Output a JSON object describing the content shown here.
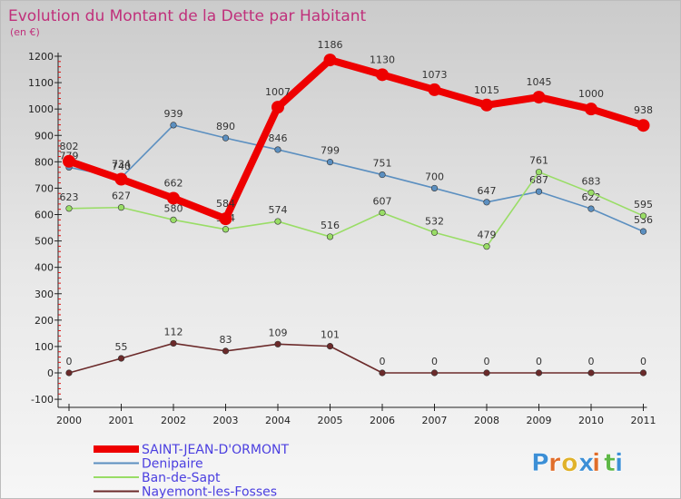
{
  "chart_data": {
    "type": "line",
    "title": "Evolution du Montant de la Dette par Habitant",
    "subtitle": "(en €)",
    "xlabel": "",
    "ylabel": "",
    "categories": [
      "2000",
      "2001",
      "2002",
      "2003",
      "2004",
      "2005",
      "2006",
      "2007",
      "2008",
      "2009",
      "2010",
      "2011"
    ],
    "ylim": [
      -100,
      1200
    ],
    "yticks": [
      -100,
      0,
      100,
      200,
      300,
      400,
      500,
      600,
      700,
      800,
      900,
      1000,
      1100,
      1200
    ],
    "grid": false,
    "legend_position": "bottom-left",
    "series": [
      {
        "name": "SAINT-JEAN-D'ORMONT",
        "color": "#ee0000",
        "values": [
          802,
          734,
          662,
          584,
          1007,
          1186,
          1130,
          1073,
          1015,
          1045,
          1000,
          938
        ],
        "emphasis": true
      },
      {
        "name": "Denipaire",
        "color": "#5b8fc0",
        "values": [
          779,
          740,
          939,
          890,
          846,
          799,
          751,
          700,
          647,
          687,
          622,
          536
        ]
      },
      {
        "name": "Ban-de-Sapt",
        "color": "#99dd66",
        "values": [
          623,
          627,
          580,
          544,
          574,
          516,
          607,
          532,
          479,
          761,
          683,
          595
        ]
      },
      {
        "name": "Nayemont-les-Fosses",
        "color": "#6b2a2a",
        "values": [
          0,
          55,
          112,
          83,
          109,
          101,
          0,
          0,
          0,
          0,
          0,
          0
        ]
      }
    ]
  },
  "brand": {
    "letters": [
      "P",
      "r",
      "o",
      "x",
      "i",
      "t",
      "i"
    ],
    "colors": [
      "#3c8fd6",
      "#e06d2a",
      "#e0b22a",
      "#3c8fd6",
      "#e06d2a",
      "#5fb847",
      "#3c8fd6"
    ]
  }
}
